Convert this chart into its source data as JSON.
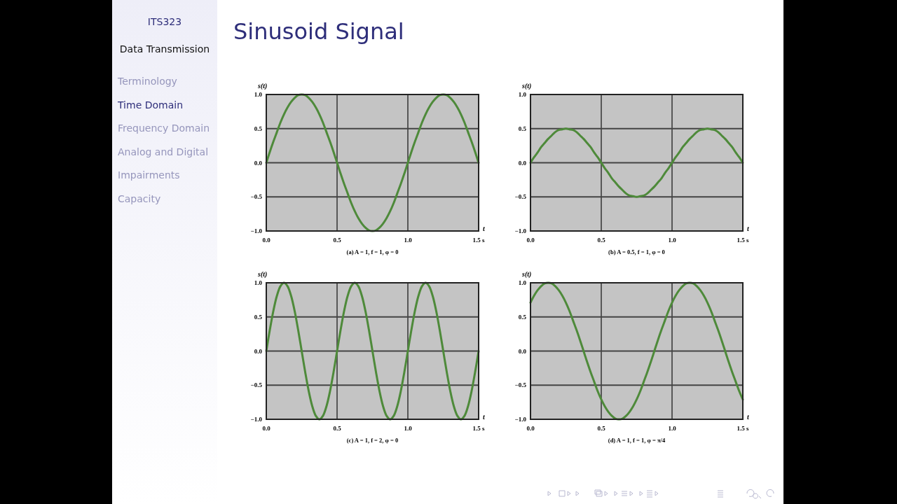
{
  "chart_data": [
    {
      "type": "other",
      "title": "Sinusoid Signal",
      "annotations": [
        "ITS323",
        "Data Transmission",
        "Terminology",
        "Time Domain",
        "Frequency Domain",
        "Analog and Digital",
        "Impairments",
        "Capacity"
      ]
    },
    {
      "type": "line",
      "title": "(a) A = 1, f = 1, φ = 0",
      "xlabel": "t",
      "ylabel": "s(t)",
      "grid": true,
      "xlim": [
        0,
        1.5
      ],
      "ylim": [
        -1,
        1
      ],
      "xticks": [
        {
          "value": 0,
          "label": "0.0"
        },
        {
          "value": 0.5,
          "label": "0.5"
        },
        {
          "value": 1,
          "label": "1.0"
        },
        {
          "value": 1.5,
          "label": "1.5 s"
        }
      ],
      "yticks": [
        {
          "value": -1,
          "label": "−1.0"
        },
        {
          "value": -0.5,
          "label": "−0.5"
        },
        {
          "value": 0,
          "label": "0.0"
        },
        {
          "value": 0.5,
          "label": "0.5"
        },
        {
          "value": 1,
          "label": "1.0"
        }
      ],
      "x": [
        0,
        0.025,
        0.05,
        0.075,
        0.1,
        0.125,
        0.15,
        0.175,
        0.2,
        0.225,
        0.25,
        0.275,
        0.3,
        0.325,
        0.35,
        0.375,
        0.4,
        0.425,
        0.45,
        0.475,
        0.5,
        0.525,
        0.55,
        0.575,
        0.6,
        0.625,
        0.65,
        0.675,
        0.7,
        0.725,
        0.75,
        0.775,
        0.8,
        0.825,
        0.85,
        0.875,
        0.9,
        0.925,
        0.95,
        0.975,
        1,
        1.025,
        1.05,
        1.075,
        1.1,
        1.125,
        1.15,
        1.175,
        1.2,
        1.225,
        1.25,
        1.275,
        1.3,
        1.325,
        1.35,
        1.375,
        1.4,
        1.425,
        1.45,
        1.475,
        1.5
      ],
      "series": [
        {
          "color": "#4e8a3a",
          "values": [
            0,
            0.16,
            0.31,
            0.45,
            0.59,
            0.71,
            0.81,
            0.89,
            0.95,
            0.99,
            1,
            0.99,
            0.95,
            0.89,
            0.81,
            0.71,
            0.59,
            0.45,
            0.31,
            0.16,
            0,
            -0.16,
            -0.31,
            -0.45,
            -0.59,
            -0.71,
            -0.81,
            -0.89,
            -0.95,
            -0.99,
            -1,
            -0.99,
            -0.95,
            -0.89,
            -0.81,
            -0.71,
            -0.59,
            -0.45,
            -0.31,
            -0.16,
            0,
            0.16,
            0.31,
            0.45,
            0.59,
            0.71,
            0.81,
            0.89,
            0.95,
            0.99,
            1,
            0.99,
            0.95,
            0.89,
            0.81,
            0.71,
            0.59,
            0.45,
            0.31,
            0.16,
            0
          ]
        }
      ]
    },
    {
      "type": "line",
      "title": "(b) A = 0.5, f = 1, φ = 0",
      "xlabel": "t",
      "ylabel": "s(t)",
      "grid": true,
      "xlim": [
        0,
        1.5
      ],
      "ylim": [
        -1,
        1
      ],
      "xticks": [
        {
          "value": 0,
          "label": "0.0"
        },
        {
          "value": 0.5,
          "label": "0.5"
        },
        {
          "value": 1,
          "label": "1.0"
        },
        {
          "value": 1.5,
          "label": "1.5 s"
        }
      ],
      "yticks": [
        {
          "value": -1,
          "label": "−1.0"
        },
        {
          "value": -0.5,
          "label": "−0.5"
        },
        {
          "value": 0,
          "label": "0.0"
        },
        {
          "value": 0.5,
          "label": "0.5"
        },
        {
          "value": 1,
          "label": "1.0"
        }
      ],
      "x": [
        0,
        0.025,
        0.05,
        0.075,
        0.1,
        0.125,
        0.15,
        0.175,
        0.2,
        0.225,
        0.25,
        0.275,
        0.3,
        0.325,
        0.35,
        0.375,
        0.4,
        0.425,
        0.45,
        0.475,
        0.5,
        0.525,
        0.55,
        0.575,
        0.6,
        0.625,
        0.65,
        0.675,
        0.7,
        0.725,
        0.75,
        0.775,
        0.8,
        0.825,
        0.85,
        0.875,
        0.9,
        0.925,
        0.95,
        0.975,
        1,
        1.025,
        1.05,
        1.075,
        1.1,
        1.125,
        1.15,
        1.175,
        1.2,
        1.225,
        1.25,
        1.275,
        1.3,
        1.325,
        1.35,
        1.375,
        1.4,
        1.425,
        1.45,
        1.475,
        1.5
      ],
      "series": [
        {
          "color": "#4e8a3a",
          "values": [
            0,
            0.08,
            0.15,
            0.23,
            0.29,
            0.35,
            0.4,
            0.45,
            0.48,
            0.49,
            0.5,
            0.49,
            0.48,
            0.45,
            0.4,
            0.35,
            0.29,
            0.23,
            0.15,
            0.08,
            0,
            -0.08,
            -0.15,
            -0.23,
            -0.29,
            -0.35,
            -0.4,
            -0.45,
            -0.48,
            -0.49,
            -0.5,
            -0.49,
            -0.48,
            -0.45,
            -0.4,
            -0.35,
            -0.29,
            -0.23,
            -0.15,
            -0.08,
            0,
            0.08,
            0.15,
            0.23,
            0.29,
            0.35,
            0.4,
            0.45,
            0.48,
            0.49,
            0.5,
            0.49,
            0.48,
            0.45,
            0.4,
            0.35,
            0.29,
            0.23,
            0.15,
            0.08,
            0
          ]
        }
      ]
    },
    {
      "type": "line",
      "title": "(c) A = 1, f = 2, φ = 0",
      "xlabel": "t",
      "ylabel": "s(t)",
      "grid": true,
      "xlim": [
        0,
        1.5
      ],
      "ylim": [
        -1,
        1
      ],
      "xticks": [
        {
          "value": 0,
          "label": "0.0"
        },
        {
          "value": 0.5,
          "label": "0.5"
        },
        {
          "value": 1,
          "label": "1.0"
        },
        {
          "value": 1.5,
          "label": "1.5 s"
        }
      ],
      "yticks": [
        {
          "value": -1,
          "label": "−1.0"
        },
        {
          "value": -0.5,
          "label": "−0.5"
        },
        {
          "value": 0,
          "label": "0.0"
        },
        {
          "value": 0.5,
          "label": "0.5"
        },
        {
          "value": 1,
          "label": "1.0"
        }
      ],
      "x": [
        0,
        0.025,
        0.05,
        0.075,
        0.1,
        0.125,
        0.15,
        0.175,
        0.2,
        0.225,
        0.25,
        0.275,
        0.3,
        0.325,
        0.35,
        0.375,
        0.4,
        0.425,
        0.45,
        0.475,
        0.5,
        0.525,
        0.55,
        0.575,
        0.6,
        0.625,
        0.65,
        0.675,
        0.7,
        0.725,
        0.75,
        0.775,
        0.8,
        0.825,
        0.85,
        0.875,
        0.9,
        0.925,
        0.95,
        0.975,
        1,
        1.025,
        1.05,
        1.075,
        1.1,
        1.125,
        1.15,
        1.175,
        1.2,
        1.225,
        1.25,
        1.275,
        1.3,
        1.325,
        1.35,
        1.375,
        1.4,
        1.425,
        1.45,
        1.475,
        1.5
      ],
      "series": [
        {
          "color": "#4e8a3a",
          "values": [
            0,
            0.31,
            0.59,
            0.81,
            0.95,
            1,
            0.95,
            0.81,
            0.59,
            0.31,
            0,
            -0.31,
            -0.59,
            -0.81,
            -0.95,
            -1,
            -0.95,
            -0.81,
            -0.59,
            -0.31,
            0,
            0.31,
            0.59,
            0.81,
            0.95,
            1,
            0.95,
            0.81,
            0.59,
            0.31,
            0,
            -0.31,
            -0.59,
            -0.81,
            -0.95,
            -1,
            -0.95,
            -0.81,
            -0.59,
            -0.31,
            0,
            0.31,
            0.59,
            0.81,
            0.95,
            1,
            0.95,
            0.81,
            0.59,
            0.31,
            0,
            -0.31,
            -0.59,
            -0.81,
            -0.95,
            -1,
            -0.95,
            -0.81,
            -0.59,
            -0.31,
            0
          ]
        }
      ]
    },
    {
      "type": "line",
      "title": "(d) A = 1, f = 1, φ = π/4",
      "xlabel": "t",
      "ylabel": "s(t)",
      "grid": true,
      "xlim": [
        0,
        1.5
      ],
      "ylim": [
        -1,
        1
      ],
      "xticks": [
        {
          "value": 0,
          "label": "0.0"
        },
        {
          "value": 0.5,
          "label": "0.5"
        },
        {
          "value": 1,
          "label": "1.0"
        },
        {
          "value": 1.5,
          "label": "1.5 s"
        }
      ],
      "yticks": [
        {
          "value": -1,
          "label": "−1.0"
        },
        {
          "value": -0.5,
          "label": "−0.5"
        },
        {
          "value": 0,
          "label": "0.0"
        },
        {
          "value": 0.5,
          "label": "0.5"
        },
        {
          "value": 1,
          "label": "1.0"
        }
      ],
      "x": [
        0,
        0.025,
        0.05,
        0.075,
        0.1,
        0.125,
        0.15,
        0.175,
        0.2,
        0.225,
        0.25,
        0.275,
        0.3,
        0.325,
        0.35,
        0.375,
        0.4,
        0.425,
        0.45,
        0.475,
        0.5,
        0.525,
        0.55,
        0.575,
        0.6,
        0.625,
        0.65,
        0.675,
        0.7,
        0.725,
        0.75,
        0.775,
        0.8,
        0.825,
        0.85,
        0.875,
        0.9,
        0.925,
        0.95,
        0.975,
        1,
        1.025,
        1.05,
        1.075,
        1.1,
        1.125,
        1.15,
        1.175,
        1.2,
        1.225,
        1.25,
        1.275,
        1.3,
        1.325,
        1.35,
        1.375,
        1.4,
        1.425,
        1.45,
        1.475,
        1.5
      ],
      "series": [
        {
          "color": "#4e8a3a",
          "values": [
            0.71,
            0.81,
            0.89,
            0.95,
            0.99,
            1,
            0.99,
            0.95,
            0.89,
            0.81,
            0.71,
            0.59,
            0.45,
            0.31,
            0.16,
            0,
            -0.16,
            -0.31,
            -0.45,
            -0.59,
            -0.71,
            -0.81,
            -0.89,
            -0.95,
            -0.99,
            -1,
            -0.99,
            -0.95,
            -0.89,
            -0.81,
            -0.71,
            -0.59,
            -0.45,
            -0.31,
            -0.16,
            0,
            0.16,
            0.31,
            0.45,
            0.59,
            0.71,
            0.81,
            0.89,
            0.95,
            0.99,
            1,
            0.99,
            0.95,
            0.89,
            0.81,
            0.71,
            0.59,
            0.45,
            0.31,
            0.16,
            0,
            -0.16,
            -0.31,
            -0.45,
            -0.59,
            -0.71
          ]
        }
      ]
    }
  ]
}
